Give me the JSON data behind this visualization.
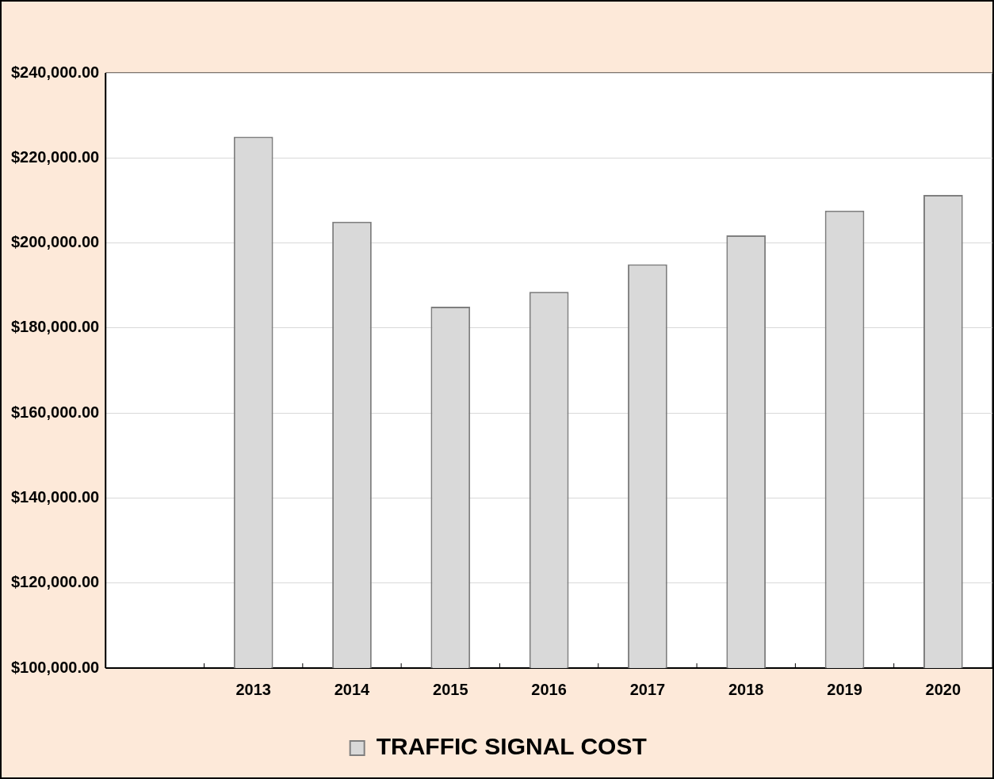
{
  "chart_data": {
    "type": "bar",
    "categories": [
      null,
      "2013",
      "2014",
      "2015",
      "2016",
      "2017",
      "2018",
      "2019",
      "2020"
    ],
    "series": [
      {
        "name": "TRAFFIC SIGNAL COST",
        "color": "#d9d9d9",
        "values": [
          null,
          225000,
          205000,
          185000,
          188500,
          195000,
          201800,
          207600,
          211300
        ]
      }
    ],
    "ylim": [
      100000,
      240000
    ],
    "yticks": [
      {
        "value": 100000,
        "label": "$100,000.00"
      },
      {
        "value": 120000,
        "label": "$120,000.00"
      },
      {
        "value": 140000,
        "label": "$140,000.00"
      },
      {
        "value": 160000,
        "label": "$160,000.00"
      },
      {
        "value": 180000,
        "label": "$180,000.00"
      },
      {
        "value": 200000,
        "label": "$200,000.00"
      },
      {
        "value": 220000,
        "label": "$220,000.00"
      },
      {
        "value": 240000,
        "label": "$240,000.00"
      }
    ],
    "grid": "y",
    "legend": "bottom"
  }
}
